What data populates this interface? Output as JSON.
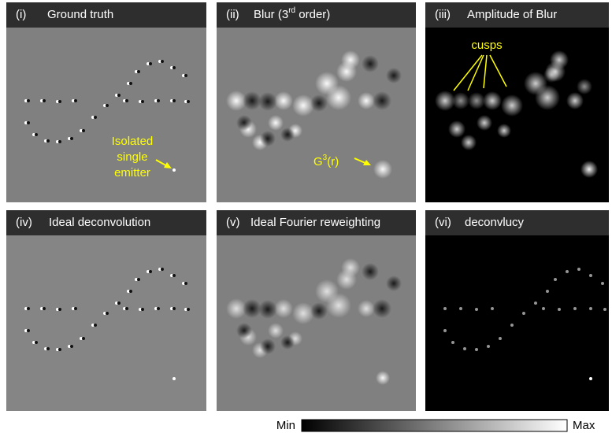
{
  "panels": [
    {
      "label": "(i)",
      "title": "Ground truth",
      "annotation": [
        "Isolated",
        "single",
        "emitter"
      ]
    },
    {
      "label": "(ii)",
      "title_parts": [
        "Blur (3",
        "rd",
        " order)"
      ],
      "annotation_parts": [
        "G",
        "3",
        "(r)"
      ]
    },
    {
      "label": "(iii)",
      "title": "Amplitude of  Blur",
      "annotation": "cusps"
    },
    {
      "label": "(iv)",
      "title": "Ideal deconvolution"
    },
    {
      "label": "(v)",
      "title": "Ideal Fourier reweighting"
    },
    {
      "label": "(vi)",
      "title": "deconvlucy"
    }
  ],
  "colorbar": {
    "min_label": "Min",
    "max_label": "Max"
  }
}
